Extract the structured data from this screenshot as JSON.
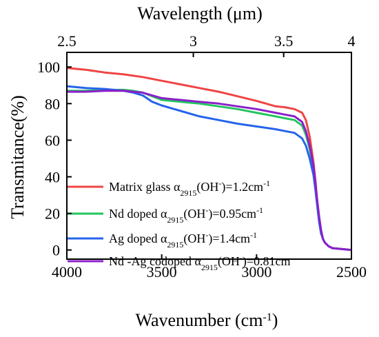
{
  "chart_data": {
    "type": "line",
    "xlabel": "Wavenumber (cm",
    "xlabel_sup": "-1",
    "xlabel_end": ")",
    "ylabel": "Transmitance(%)",
    "top_xlabel": "Wavelength (μm)",
    "xlim": [
      4000,
      2500
    ],
    "ylim": [
      -5,
      108
    ],
    "x_ticks": [
      4000,
      3500,
      3000,
      2500
    ],
    "y_ticks": [
      0,
      20,
      40,
      60,
      80,
      100
    ],
    "top_ticks": [
      {
        "label": "2.5",
        "wavenumber": 4000
      },
      {
        "label": "3",
        "wavenumber": 3333.33
      },
      {
        "label": "3.5",
        "wavenumber": 2857.14
      },
      {
        "label": "4",
        "wavenumber": 2500
      }
    ],
    "grid": false,
    "legend_position": "bottom-left",
    "series": [
      {
        "name": "Matrix glass",
        "legend_main": "Matrix glass α",
        "legend_sub": "2915",
        "legend_mid": "(OH",
        "legend_sup": "-",
        "legend_tail": ")=1.2cm",
        "legend_sup2": "-1",
        "color": "#ef4444",
        "x": [
          4000,
          3900,
          3800,
          3700,
          3600,
          3500,
          3400,
          3300,
          3200,
          3100,
          3000,
          2950,
          2900,
          2850,
          2800,
          2760,
          2740,
          2720,
          2700,
          2690,
          2680,
          2670,
          2660,
          2650,
          2640,
          2620,
          2600,
          2550,
          2500
        ],
        "y": [
          99.5,
          98.5,
          97,
          96,
          94.5,
          92.5,
          90.5,
          88.5,
          86.5,
          84,
          81.5,
          80,
          78.5,
          78,
          77,
          75,
          71,
          62,
          48,
          38,
          26,
          16,
          10,
          6,
          4,
          2,
          1,
          0.5,
          0
        ]
      },
      {
        "name": "Nd doped",
        "legend_main": "Nd doped α",
        "legend_sub": "2915",
        "legend_mid": "(OH",
        "legend_sup": "-",
        "legend_tail": ")=0.95cm",
        "legend_sup2": "-1",
        "color": "#22c55e",
        "x": [
          4000,
          3900,
          3800,
          3700,
          3650,
          3600,
          3550,
          3500,
          3400,
          3300,
          3200,
          3100,
          3000,
          2900,
          2850,
          2800,
          2760,
          2740,
          2720,
          2700,
          2690,
          2680,
          2670,
          2660,
          2650,
          2640,
          2620,
          2600,
          2550,
          2500
        ],
        "y": [
          87,
          87,
          87.5,
          87.5,
          87,
          86,
          84,
          82,
          81,
          80,
          78.5,
          77,
          75,
          73,
          72,
          71,
          68,
          63,
          55,
          45,
          36,
          26,
          17,
          10,
          6,
          4,
          2,
          1,
          0.5,
          0
        ]
      },
      {
        "name": "Ag doped",
        "legend_main": "Ag doped α",
        "legend_sub": "2915",
        "legend_mid": "(OH",
        "legend_sup": "-",
        "legend_tail": ")=1.4cm",
        "legend_sup2": "-1",
        "color": "#2563eb",
        "x": [
          4000,
          3900,
          3800,
          3700,
          3650,
          3600,
          3550,
          3500,
          3400,
          3300,
          3200,
          3100,
          3000,
          2900,
          2850,
          2800,
          2760,
          2740,
          2720,
          2700,
          2690,
          2680,
          2670,
          2660,
          2650,
          2640,
          2620,
          2600,
          2550,
          2500
        ],
        "y": [
          89.5,
          88.5,
          88,
          87,
          86,
          84.5,
          81,
          79,
          76,
          73,
          71,
          69,
          67.5,
          66,
          65,
          64,
          61,
          57,
          50,
          41,
          33,
          24,
          15,
          9,
          6,
          4,
          2,
          1,
          0.5,
          0
        ]
      },
      {
        "name": "Nd -Ag codoped",
        "legend_main": "Nd -Ag codoped α",
        "legend_sub": "2915",
        "legend_mid": "(OH",
        "legend_sup": "-",
        "legend_tail": ")=0.81cm",
        "legend_sup2": "",
        "color": "#8b20c8",
        "x": [
          4000,
          3900,
          3800,
          3700,
          3650,
          3600,
          3550,
          3500,
          3400,
          3300,
          3200,
          3100,
          3000,
          2900,
          2850,
          2800,
          2760,
          2740,
          2720,
          2700,
          2690,
          2680,
          2670,
          2660,
          2650,
          2640,
          2620,
          2600,
          2550,
          2500
        ],
        "y": [
          86.5,
          86.5,
          87,
          87,
          86.5,
          86,
          84.5,
          83,
          82,
          81,
          80,
          78.5,
          77,
          75,
          74,
          73,
          70,
          65,
          57,
          46,
          37,
          27,
          18,
          11,
          6,
          4,
          2,
          1,
          0.5,
          0
        ]
      }
    ]
  }
}
